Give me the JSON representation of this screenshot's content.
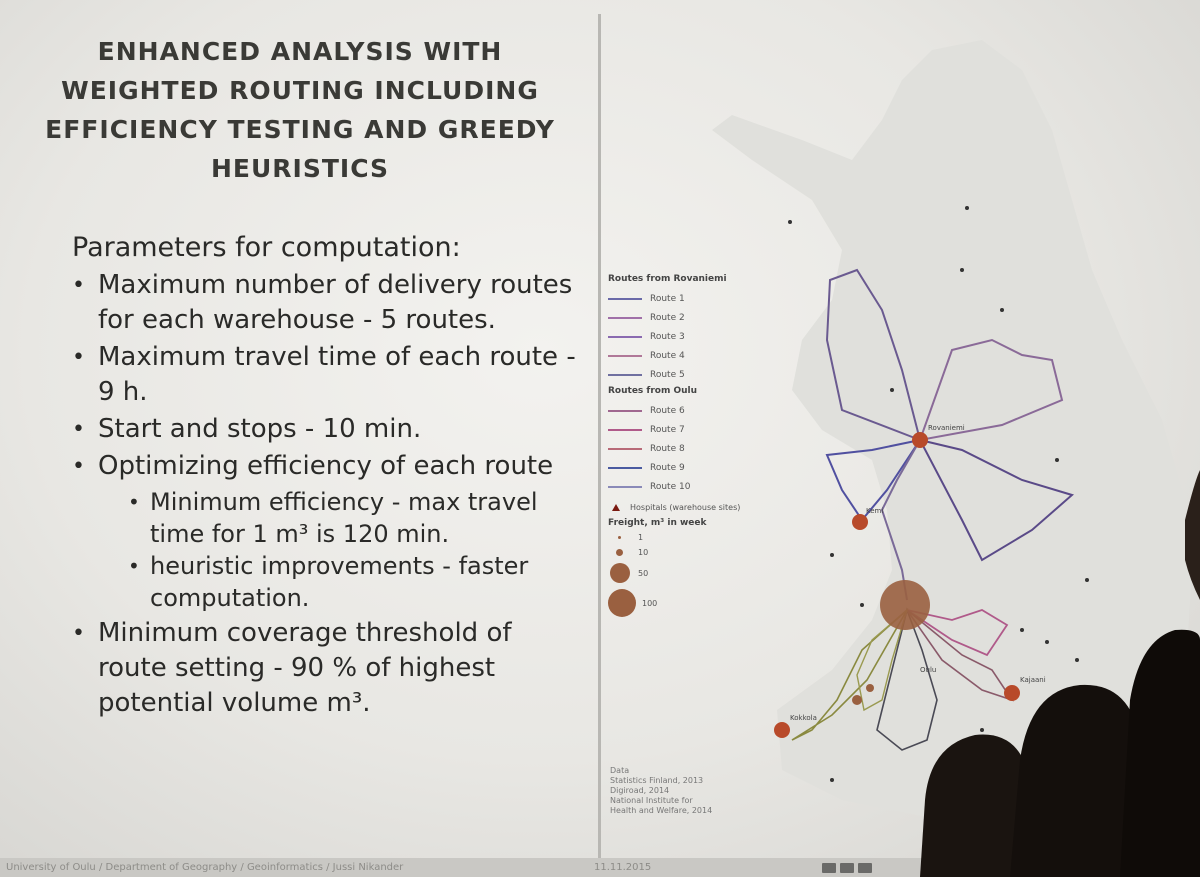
{
  "slide": {
    "title": "ENHANCED ANALYSIS WITH WEIGHTED ROUTING INCLUDING EFFICIENCY TESTING AND GREEDY HEURISTICS",
    "params_heading": "Parameters for computation:",
    "bullets": [
      "Maximum number of delivery routes for each warehouse - 5 routes.",
      "Maximum travel time of each route - 9 h.",
      "Start and stops - 10 min.",
      "Optimizing efficiency of each route",
      "Minimum coverage threshold of route setting - 90 % of highest potential volume m³."
    ],
    "sub_bullets": [
      "Minimum efficiency - max travel time for 1 m³ is 120 min.",
      "heuristic improvements - faster computation."
    ]
  },
  "map": {
    "legend_heading_1": "Routes from Rovaniemi",
    "routes_group_1": [
      "Route 1",
      "Route 2",
      "Route 3",
      "Route 4",
      "Route 5"
    ],
    "legend_heading_2": "Routes from Oulu",
    "routes_group_2": [
      "Route 6",
      "Route 7",
      "Route 8",
      "Route 9",
      "Route 10"
    ],
    "hospitals_label": "Hospitals (warehouse sites)",
    "freight_heading": "Freight, m³ in week",
    "freight_values": [
      "1",
      "10",
      "50",
      "100"
    ],
    "data_heading": "Data",
    "data_sources": [
      "Statistics Finland, 2013",
      "Digiroad, 2014",
      "National Institute for",
      "Health and Welfare, 2014"
    ],
    "place_labels": [
      "Rovaniemi",
      "Kemi",
      "Oulu",
      "Kajaani",
      "Kokkola"
    ],
    "colors": {
      "route_1": "#6a6aa8",
      "route_2": "#a070a8",
      "route_3": "#8a6ab0",
      "route_4": "#b07898",
      "route_5": "#7070a0",
      "route_6": "#a06890",
      "route_7": "#b05a8a",
      "route_8": "#b86a78",
      "route_9": "#4a5aa0",
      "route_10": "#8a8ab8",
      "hospital": "#b84a2a",
      "freight": "#9a6040"
    }
  },
  "footer": {
    "text": "University of Oulu / Department of Geography / Geoinformatics / Jussi Nikander",
    "date": "11.11.2015"
  }
}
